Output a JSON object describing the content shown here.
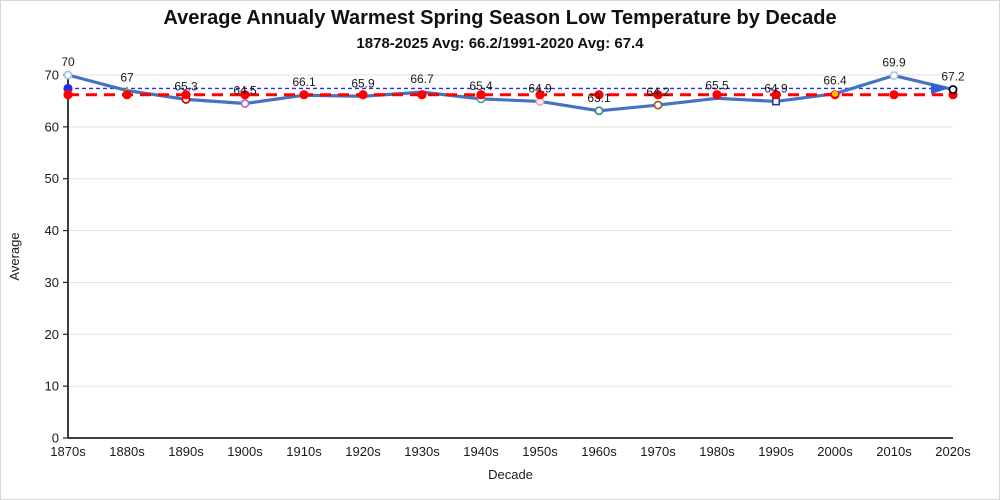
{
  "chart_data": {
    "type": "line",
    "title": "Average Annualy Warmest Spring Season Low Temperature by Decade",
    "subtitle": "1878-2025 Avg: 66.2/1991-2020 Avg: 67.4",
    "xlabel": "Decade",
    "ylabel": "Average",
    "ylim": [
      0,
      70
    ],
    "ytick_step": 10,
    "grid": true,
    "legend": "none",
    "categories": [
      "1870s",
      "1880s",
      "1890s",
      "1900s",
      "1910s",
      "1920s",
      "1930s",
      "1940s",
      "1950s",
      "1960s",
      "1970s",
      "1980s",
      "1990s",
      "2000s",
      "2010s",
      "2020s"
    ],
    "series": [
      {
        "name": "decade-average-low",
        "color": "#4472C4",
        "values": [
          70,
          67,
          65.3,
          64.5,
          66.1,
          65.9,
          66.7,
          65.4,
          64.9,
          63.1,
          64.2,
          65.5,
          64.9,
          66.4,
          69.9,
          67.2
        ],
        "point_labels": [
          "70",
          "67",
          "65.3",
          "64.5",
          "66.1",
          "65.9",
          "66.7",
          "65.4",
          "64.9",
          "63.1",
          "64.2",
          "65.5",
          "64.9",
          "66.4",
          "69.9",
          "67.2"
        ],
        "point_markers": [
          {
            "shape": "circle",
            "color": "#9DC3E6"
          },
          {
            "shape": "triangle",
            "color": "#70AD47"
          },
          {
            "shape": "circle",
            "color": "#C00000"
          },
          {
            "shape": "circle",
            "color": "#B066C9"
          },
          null,
          null,
          null,
          {
            "shape": "circle",
            "color": "#5B9A8F"
          },
          {
            "shape": "circle",
            "color": "#ECA3B5"
          },
          {
            "shape": "circle",
            "color": "#37858F"
          },
          {
            "shape": "circle",
            "color": "#9A6227"
          },
          null,
          {
            "shape": "square",
            "color": "#28379B"
          },
          {
            "shape": "dot",
            "color": "#FFC000",
            "top": true
          },
          {
            "shape": "circle",
            "color": "#B5C4DB"
          },
          {
            "shape": "circle",
            "color": "#000000",
            "top": true
          }
        ]
      }
    ],
    "reference_lines": [
      {
        "name": "avg-1878-2025",
        "value": 66.2,
        "color": "#FF0000",
        "style": "dashed",
        "dot_every_category": true
      },
      {
        "name": "avg-1991-2020",
        "value": 67.4,
        "color": "#2B2BE6",
        "style": "dotted",
        "start_dot": true,
        "arrow_end": true,
        "arrow_color": "#2E5FD6"
      }
    ],
    "colors": {
      "grid": "#E2E2E2",
      "axis": "#262626",
      "text": "#1A1A1A"
    }
  }
}
